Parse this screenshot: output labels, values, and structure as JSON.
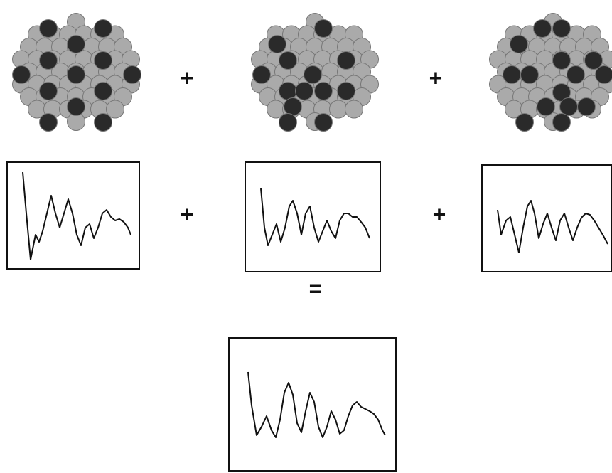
{
  "operators": [
    "+",
    "+",
    "+",
    "+",
    "="
  ]
}
